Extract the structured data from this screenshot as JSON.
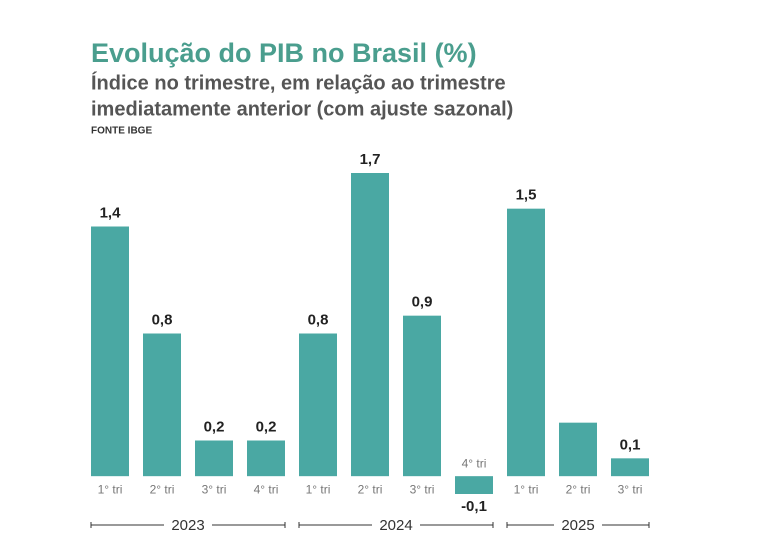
{
  "chart_data": {
    "type": "bar",
    "title": "Evolução do PIB no Brasil (%)",
    "subtitle": [
      "Índice no trimestre, em relação ao trimestre",
      "imediatamente anterior (com ajuste sazonal)"
    ],
    "source": "FONTE IBGE",
    "categories": [
      "1° tri",
      "2° tri",
      "3° tri",
      "4° tri",
      "1° tri",
      "2° tri",
      "3° tri",
      "4° tri",
      "1° tri",
      "2° tri",
      "3° tri"
    ],
    "values": [
      1.4,
      0.8,
      0.2,
      0.2,
      0.8,
      1.7,
      0.9,
      -0.1,
      1.5,
      0.3,
      0.1
    ],
    "value_labels": [
      "1,4",
      "0,8",
      "0,2",
      "0,2",
      "0,8",
      "1,7",
      "0,9",
      "-0,1",
      "1,5",
      null,
      "0,1"
    ],
    "groups": [
      {
        "name": "2023",
        "count": 4
      },
      {
        "name": "2024",
        "count": 4
      },
      {
        "name": "2025",
        "count": 3
      }
    ],
    "color": "#4aa8a3",
    "ylim": [
      -0.1,
      1.7
    ]
  }
}
